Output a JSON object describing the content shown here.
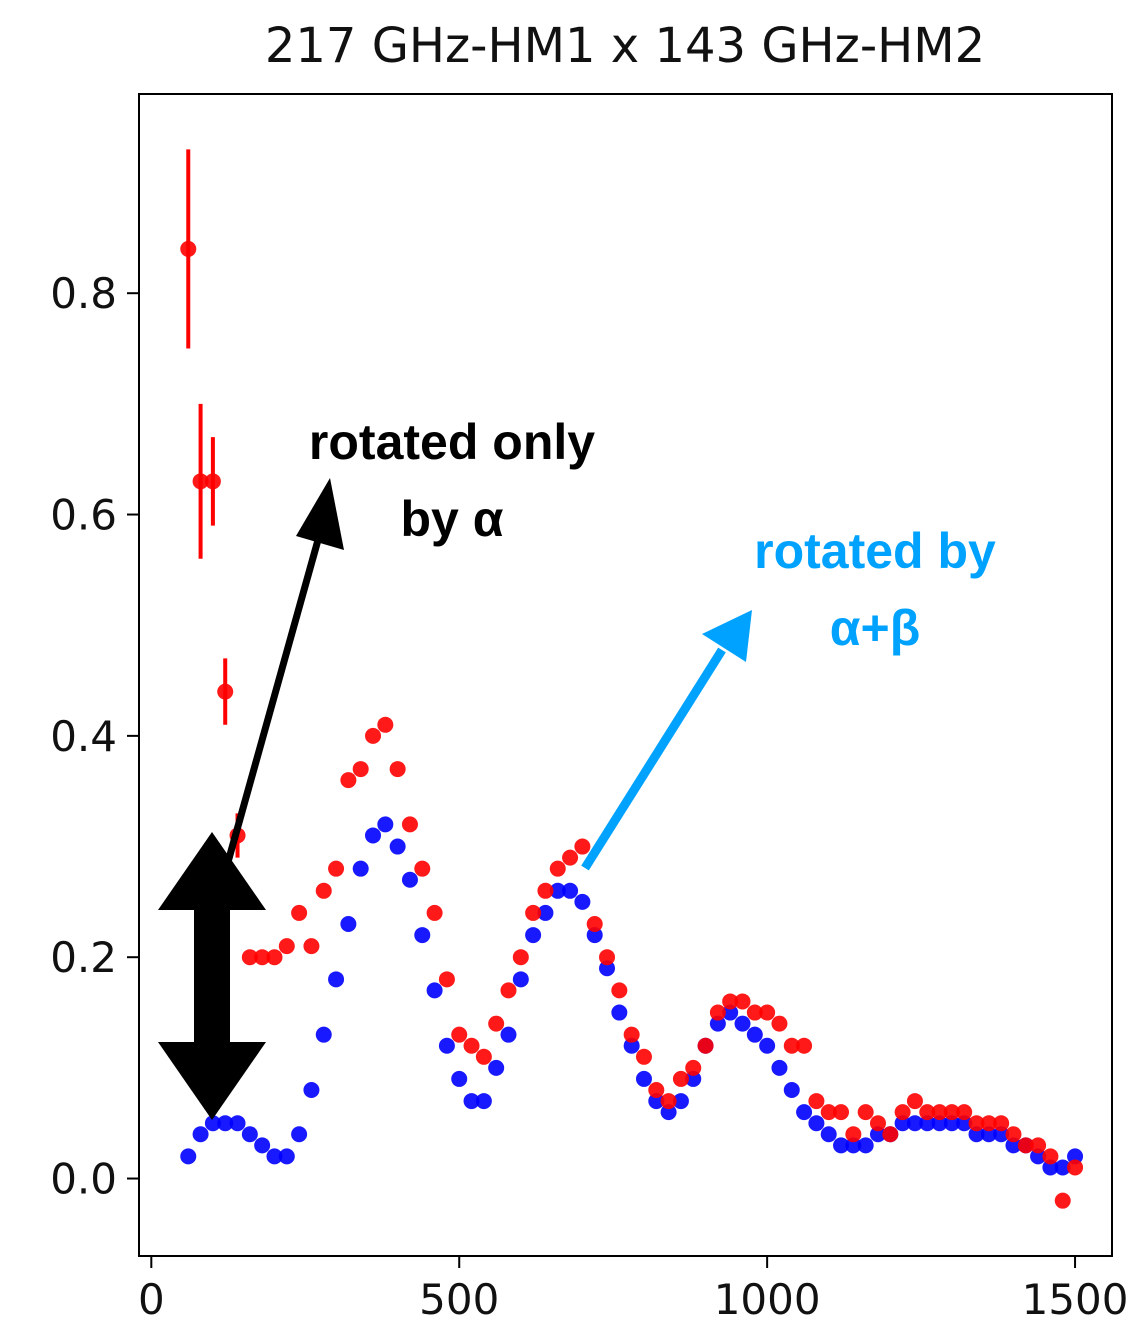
{
  "chart_data": {
    "type": "scatter",
    "title": "217 GHz-HM1 x 143 GHz-HM2",
    "xlabel": "",
    "ylabel": "",
    "xlim": [
      -20,
      1560
    ],
    "ylim": [
      -0.07,
      0.98
    ],
    "x_ticks": [
      0,
      500,
      1000,
      1500
    ],
    "x_tick_labels": [
      "0",
      "500",
      "1000",
      "1500"
    ],
    "y_ticks": [
      0.0,
      0.2,
      0.4,
      0.6,
      0.8
    ],
    "y_tick_labels": [
      "0.0",
      "0.2",
      "0.4",
      "0.6",
      "0.8"
    ],
    "grid": false,
    "series": [
      {
        "color": "#ff0000",
        "x": [
          60,
          80,
          100,
          120,
          140,
          160,
          180,
          200,
          220,
          240,
          260,
          280,
          300,
          320,
          340,
          360,
          380,
          400,
          420,
          440,
          460,
          480,
          500,
          520,
          540,
          560,
          580,
          600,
          620,
          640,
          660,
          680,
          700,
          720,
          740,
          760,
          780,
          800,
          820,
          840,
          860,
          880,
          900,
          920,
          940,
          960,
          980,
          1000,
          1020,
          1040,
          1060,
          1080,
          1100,
          1120,
          1140,
          1160,
          1180,
          1200,
          1220,
          1240,
          1260,
          1280,
          1300,
          1320,
          1340,
          1360,
          1380,
          1400,
          1420,
          1440,
          1460,
          1480,
          1500
        ],
        "y": [
          0.84,
          0.63,
          0.63,
          0.44,
          0.31,
          0.2,
          0.2,
          0.2,
          0.21,
          0.24,
          0.21,
          0.26,
          0.28,
          0.36,
          0.37,
          0.4,
          0.41,
          0.37,
          0.32,
          0.28,
          0.24,
          0.18,
          0.13,
          0.12,
          0.11,
          0.14,
          0.17,
          0.2,
          0.24,
          0.26,
          0.28,
          0.29,
          0.3,
          0.23,
          0.2,
          0.17,
          0.13,
          0.11,
          0.08,
          0.07,
          0.09,
          0.1,
          0.12,
          0.15,
          0.16,
          0.16,
          0.15,
          0.15,
          0.14,
          0.12,
          0.12,
          0.07,
          0.06,
          0.06,
          0.04,
          0.06,
          0.05,
          0.04,
          0.06,
          0.07,
          0.06,
          0.06,
          0.06,
          0.06,
          0.05,
          0.05,
          0.05,
          0.04,
          0.03,
          0.03,
          0.02,
          -0.02,
          0.01
        ],
        "yerr": [
          0.09,
          0.07,
          0.04,
          0.03,
          0.02,
          0.0,
          0.0,
          0.0,
          0.0,
          0.0,
          0.0,
          0.0,
          0.0,
          0.0,
          0.0,
          0.0,
          0.0,
          0.0,
          0.0,
          0.0,
          0.0,
          0.0,
          0.0,
          0.0,
          0.0,
          0.0,
          0.0,
          0.0,
          0.0,
          0.0,
          0.0,
          0.0,
          0.0,
          0.0,
          0.0,
          0.0,
          0.0,
          0.0,
          0.0,
          0.0,
          0.0,
          0.0,
          0.0,
          0.0,
          0.0,
          0.0,
          0.0,
          0.0,
          0.0,
          0.0,
          0.0,
          0.0,
          0.0,
          0.0,
          0.0,
          0.0,
          0.0,
          0.0,
          0.0,
          0.0,
          0.0,
          0.0,
          0.0,
          0.0,
          0.0,
          0.0,
          0.0,
          0.0,
          0.0,
          0.0,
          0.0,
          0.0,
          0.0
        ]
      },
      {
        "color": "#0000ff",
        "x": [
          60,
          80,
          100,
          120,
          140,
          160,
          180,
          200,
          220,
          240,
          260,
          280,
          300,
          320,
          340,
          360,
          380,
          400,
          420,
          440,
          460,
          480,
          500,
          520,
          540,
          560,
          580,
          600,
          620,
          640,
          660,
          680,
          700,
          720,
          740,
          760,
          780,
          800,
          820,
          840,
          860,
          880,
          900,
          920,
          940,
          960,
          980,
          1000,
          1020,
          1040,
          1060,
          1080,
          1100,
          1120,
          1140,
          1160,
          1180,
          1200,
          1220,
          1240,
          1260,
          1280,
          1300,
          1320,
          1340,
          1360,
          1380,
          1400,
          1420,
          1440,
          1460,
          1480,
          1500
        ],
        "y": [
          0.02,
          0.04,
          0.05,
          0.05,
          0.05,
          0.04,
          0.03,
          0.02,
          0.02,
          0.04,
          0.08,
          0.13,
          0.18,
          0.23,
          0.28,
          0.31,
          0.32,
          0.3,
          0.27,
          0.22,
          0.17,
          0.12,
          0.09,
          0.07,
          0.07,
          0.1,
          0.13,
          0.18,
          0.22,
          0.24,
          0.26,
          0.26,
          0.25,
          0.22,
          0.19,
          0.15,
          0.12,
          0.09,
          0.07,
          0.06,
          0.07,
          0.09,
          0.12,
          0.14,
          0.15,
          0.14,
          0.13,
          0.12,
          0.1,
          0.08,
          0.06,
          0.05,
          0.04,
          0.03,
          0.03,
          0.03,
          0.04,
          0.04,
          0.05,
          0.05,
          0.05,
          0.05,
          0.05,
          0.05,
          0.04,
          0.04,
          0.04,
          0.03,
          0.03,
          0.02,
          0.01,
          0.01,
          0.02
        ]
      }
    ],
    "annotations": [
      {
        "text_lines": [
          "rotated only",
          "by α"
        ],
        "color": "#000000"
      },
      {
        "text_lines": [
          "rotated by",
          "α+β"
        ],
        "color": "#00a2ff"
      }
    ]
  }
}
